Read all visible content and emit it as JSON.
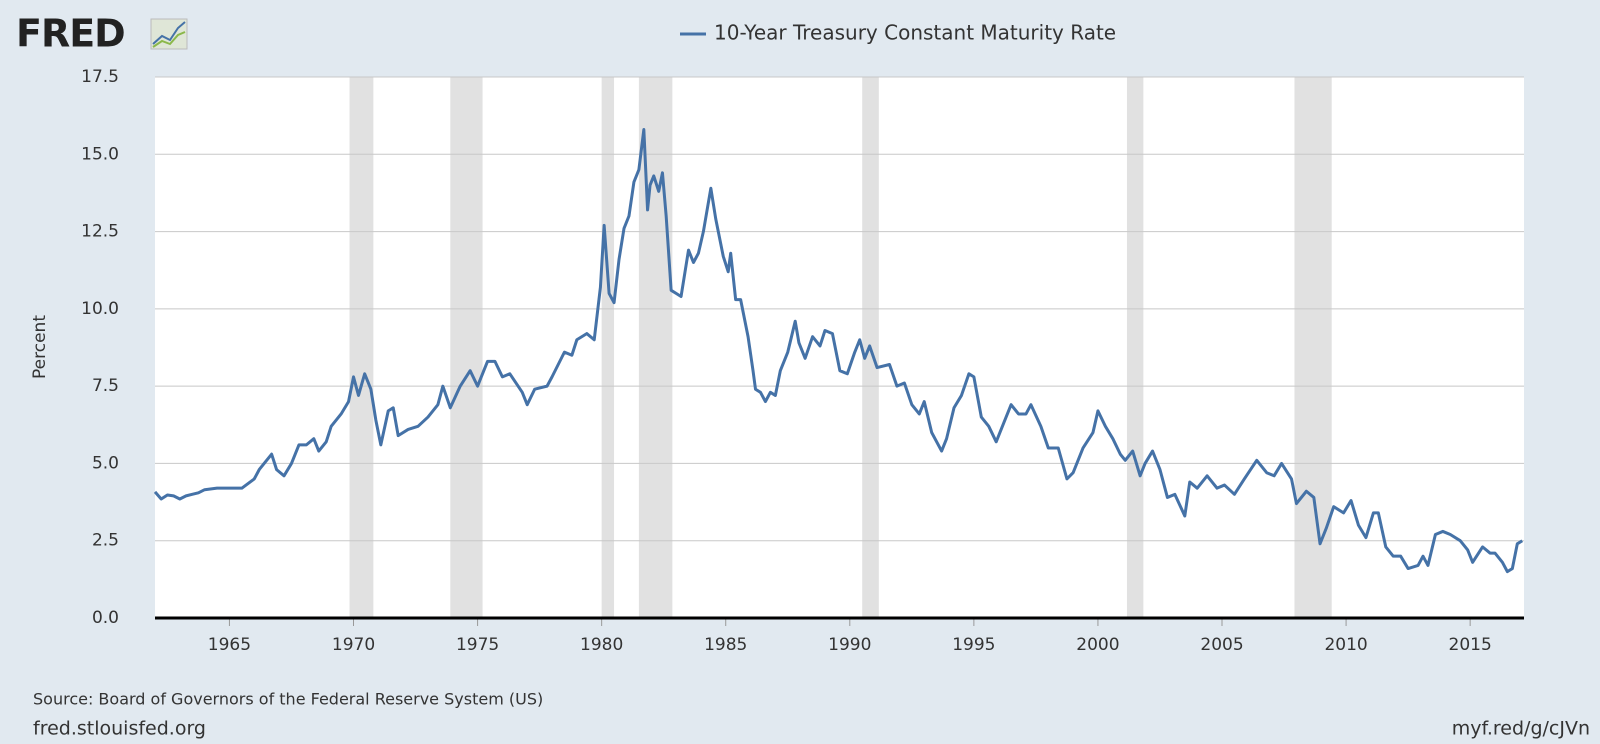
{
  "logo": "FRED",
  "chart_data": {
    "type": "line",
    "y_label": "Percent",
    "source": "Source: Board of Governors of the Federal Reserve System (US)",
    "footer_left": "fred.stlouisfed.org",
    "footer_right": "myf.red/g/cJVn",
    "xlim": [
      1962,
      2017.17
    ],
    "xticks": [
      1965,
      1970,
      1975,
      1980,
      1985,
      1990,
      1995,
      2000,
      2005,
      2010,
      2015
    ],
    "ylim": [
      0,
      17.5
    ],
    "yticks": [
      {
        "value": 0,
        "label": "0.0"
      },
      {
        "value": 2.5,
        "label": "2.5"
      },
      {
        "value": 5,
        "label": "5.0"
      },
      {
        "value": 7.5,
        "label": "7.5"
      },
      {
        "value": 10,
        "label": "10.0"
      },
      {
        "value": 12.5,
        "label": "12.5"
      },
      {
        "value": 15,
        "label": "15.0"
      },
      {
        "value": 17.5,
        "label": "17.5"
      }
    ],
    "grid": true,
    "recession_color": "#e1e1e1",
    "recessions": [
      {
        "start": 1969.84,
        "end": 1970.8
      },
      {
        "start": 1973.9,
        "end": 1975.2
      },
      {
        "start": 1980.0,
        "end": 1980.5
      },
      {
        "start": 1981.5,
        "end": 1982.85
      },
      {
        "start": 1990.5,
        "end": 1991.17
      },
      {
        "start": 2001.17,
        "end": 2001.83
      },
      {
        "start": 2007.92,
        "end": 2009.42
      }
    ],
    "x": [
      1962.0,
      1962.25,
      1962.5,
      1962.75,
      1963.0,
      1963.25,
      1963.5,
      1963.75,
      1964.0,
      1964.5,
      1965.0,
      1965.5,
      1966.0,
      1966.2,
      1966.5,
      1966.7,
      1966.9,
      1967.2,
      1967.5,
      1967.8,
      1968.1,
      1968.4,
      1968.6,
      1968.9,
      1969.1,
      1969.5,
      1969.8,
      1970.0,
      1970.2,
      1970.45,
      1970.7,
      1970.9,
      1971.1,
      1971.4,
      1971.6,
      1971.8,
      1972.2,
      1972.6,
      1973.0,
      1973.4,
      1973.6,
      1973.9,
      1974.3,
      1974.7,
      1975.0,
      1975.4,
      1975.7,
      1976.0,
      1976.3,
      1976.8,
      1977.0,
      1977.3,
      1977.8,
      1978.0,
      1978.5,
      1978.8,
      1979.0,
      1979.4,
      1979.7,
      1979.95,
      1980.1,
      1980.3,
      1980.5,
      1980.7,
      1980.9,
      1981.1,
      1981.3,
      1981.5,
      1981.7,
      1981.85,
      1981.95,
      1982.1,
      1982.3,
      1982.45,
      1982.6,
      1982.8,
      1983.0,
      1983.2,
      1983.5,
      1983.7,
      1983.9,
      1984.1,
      1984.4,
      1984.6,
      1984.9,
      1985.1,
      1985.2,
      1985.4,
      1985.6,
      1985.9,
      1986.1,
      1986.2,
      1986.4,
      1986.6,
      1986.8,
      1987.0,
      1987.2,
      1987.5,
      1987.8,
      1987.95,
      1988.2,
      1988.5,
      1988.8,
      1989.0,
      1989.3,
      1989.6,
      1989.9,
      1990.2,
      1990.4,
      1990.6,
      1990.8,
      1991.1,
      1991.6,
      1991.9,
      1992.2,
      1992.5,
      1992.8,
      1993.0,
      1993.3,
      1993.7,
      1993.9,
      1994.2,
      1994.5,
      1994.8,
      1995.0,
      1995.3,
      1995.6,
      1995.9,
      1996.2,
      1996.5,
      1996.8,
      1997.1,
      1997.3,
      1997.7,
      1998.0,
      1998.4,
      1998.75,
      1999.0,
      1999.4,
      1999.8,
      2000.0,
      2000.3,
      2000.6,
      2000.9,
      2001.1,
      2001.4,
      2001.7,
      2001.9,
      2002.2,
      2002.5,
      2002.8,
      2003.1,
      2003.5,
      2003.7,
      2004.0,
      2004.4,
      2004.8,
      2005.1,
      2005.5,
      2005.9,
      2006.4,
      2006.8,
      2007.1,
      2007.4,
      2007.8,
      2008.0,
      2008.4,
      2008.7,
      2008.95,
      2009.2,
      2009.5,
      2009.9,
      2010.2,
      2010.5,
      2010.8,
      2011.1,
      2011.3,
      2011.6,
      2011.9,
      2012.2,
      2012.5,
      2012.9,
      2013.1,
      2013.3,
      2013.6,
      2013.9,
      2014.2,
      2014.6,
      2014.9,
      2015.1,
      2015.5,
      2015.8,
      2016.0,
      2016.3,
      2016.5,
      2016.7,
      2016.9,
      2017.1
    ],
    "series": [
      {
        "name": "10-Year Treasury Constant Maturity Rate",
        "color": "#4572a7",
        "values": [
          4.08,
          3.85,
          3.98,
          3.95,
          3.85,
          3.95,
          4.0,
          4.05,
          4.15,
          4.2,
          4.2,
          4.2,
          4.5,
          4.8,
          5.1,
          5.3,
          4.8,
          4.6,
          5.0,
          5.6,
          5.6,
          5.8,
          5.4,
          5.7,
          6.2,
          6.6,
          7.0,
          7.8,
          7.2,
          7.9,
          7.4,
          6.4,
          5.6,
          6.7,
          6.8,
          5.9,
          6.1,
          6.2,
          6.5,
          6.9,
          7.5,
          6.8,
          7.5,
          8.0,
          7.5,
          8.3,
          8.3,
          7.8,
          7.9,
          7.3,
          6.9,
          7.4,
          7.5,
          7.8,
          8.6,
          8.5,
          9.0,
          9.2,
          9.0,
          10.7,
          12.7,
          10.5,
          10.2,
          11.6,
          12.6,
          13.0,
          14.1,
          14.5,
          15.8,
          13.2,
          14.0,
          14.3,
          13.8,
          14.4,
          13.0,
          10.6,
          10.5,
          10.4,
          11.9,
          11.5,
          11.8,
          12.5,
          13.9,
          12.9,
          11.7,
          11.2,
          11.8,
          10.3,
          10.3,
          9.1,
          8.0,
          7.4,
          7.3,
          7.0,
          7.3,
          7.2,
          8.0,
          8.6,
          9.6,
          8.9,
          8.4,
          9.1,
          8.8,
          9.3,
          9.2,
          8.0,
          7.9,
          8.6,
          9.0,
          8.4,
          8.8,
          8.1,
          8.2,
          7.5,
          7.6,
          6.9,
          6.6,
          7.0,
          6.0,
          5.4,
          5.8,
          6.8,
          7.2,
          7.9,
          7.8,
          6.5,
          6.2,
          5.7,
          6.3,
          6.9,
          6.6,
          6.6,
          6.9,
          6.2,
          5.5,
          5.5,
          4.5,
          4.7,
          5.5,
          6.0,
          6.7,
          6.2,
          5.8,
          5.3,
          5.1,
          5.4,
          4.6,
          5.0,
          5.4,
          4.8,
          3.9,
          4.0,
          3.3,
          4.4,
          4.2,
          4.6,
          4.2,
          4.3,
          4.0,
          4.5,
          5.1,
          4.7,
          4.6,
          5.0,
          4.5,
          3.7,
          4.1,
          3.9,
          2.4,
          2.9,
          3.6,
          3.4,
          3.8,
          3.0,
          2.6,
          3.4,
          3.4,
          2.3,
          2.0,
          2.0,
          1.6,
          1.7,
          2.0,
          1.7,
          2.7,
          2.8,
          2.7,
          2.5,
          2.2,
          1.8,
          2.3,
          2.1,
          2.1,
          1.8,
          1.5,
          1.6,
          2.4,
          2.5
        ]
      }
    ]
  }
}
